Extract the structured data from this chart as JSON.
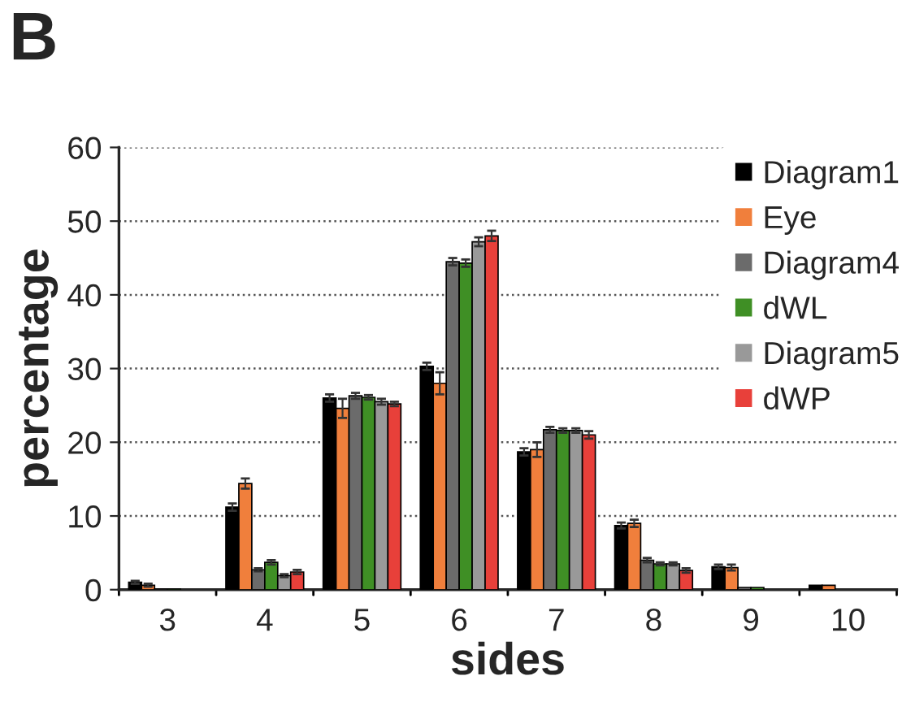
{
  "chart_data": {
    "type": "bar",
    "xlabel": "sides",
    "ylabel": "percentage",
    "annotations": [
      "B"
    ],
    "categories": [
      "3",
      "4",
      "5",
      "6",
      "7",
      "8",
      "9",
      "10"
    ],
    "series": [
      {
        "name": "Diagram1",
        "color": "#000000",
        "values": [
          1.0,
          11.2,
          26.0,
          30.3,
          18.7,
          8.7,
          3.1,
          0.6
        ],
        "errors": [
          0.2,
          0.5,
          0.5,
          0.5,
          0.5,
          0.4,
          0.3,
          null
        ]
      },
      {
        "name": "Eye",
        "color": "#f07f3c",
        "values": [
          0.6,
          14.4,
          24.6,
          28.0,
          19.0,
          9.0,
          3.0,
          0.6
        ],
        "errors": [
          0.2,
          0.7,
          1.3,
          1.5,
          1.0,
          0.5,
          0.4,
          null
        ]
      },
      {
        "name": "Diagram4",
        "color": "#6b6b6b",
        "values": [
          0.1,
          2.7,
          26.3,
          44.5,
          21.7,
          4.0,
          0.3,
          null
        ],
        "errors": [
          null,
          0.2,
          0.4,
          0.5,
          0.4,
          0.3,
          null,
          null
        ]
      },
      {
        "name": "dWL",
        "color": "#3f8f25",
        "values": [
          0.1,
          3.7,
          26.1,
          44.3,
          21.6,
          3.5,
          0.3,
          null
        ],
        "errors": [
          null,
          0.3,
          0.3,
          0.5,
          0.3,
          0.2,
          null,
          null
        ]
      },
      {
        "name": "Diagram5",
        "color": "#999999",
        "values": [
          null,
          1.9,
          25.5,
          47.2,
          21.6,
          3.5,
          null,
          null
        ],
        "errors": [
          null,
          0.2,
          0.4,
          0.6,
          0.3,
          0.2,
          null,
          null
        ]
      },
      {
        "name": "dWP",
        "color": "#e8403a",
        "values": [
          null,
          2.4,
          25.2,
          48.0,
          21.0,
          2.6,
          null,
          null
        ],
        "errors": [
          null,
          0.3,
          0.3,
          0.7,
          0.5,
          0.3,
          null,
          null
        ]
      }
    ],
    "ylim": [
      0,
      60
    ],
    "yticks": [
      0,
      10,
      20,
      30,
      40,
      50,
      60
    ],
    "grid": "y",
    "legend": "top right"
  }
}
